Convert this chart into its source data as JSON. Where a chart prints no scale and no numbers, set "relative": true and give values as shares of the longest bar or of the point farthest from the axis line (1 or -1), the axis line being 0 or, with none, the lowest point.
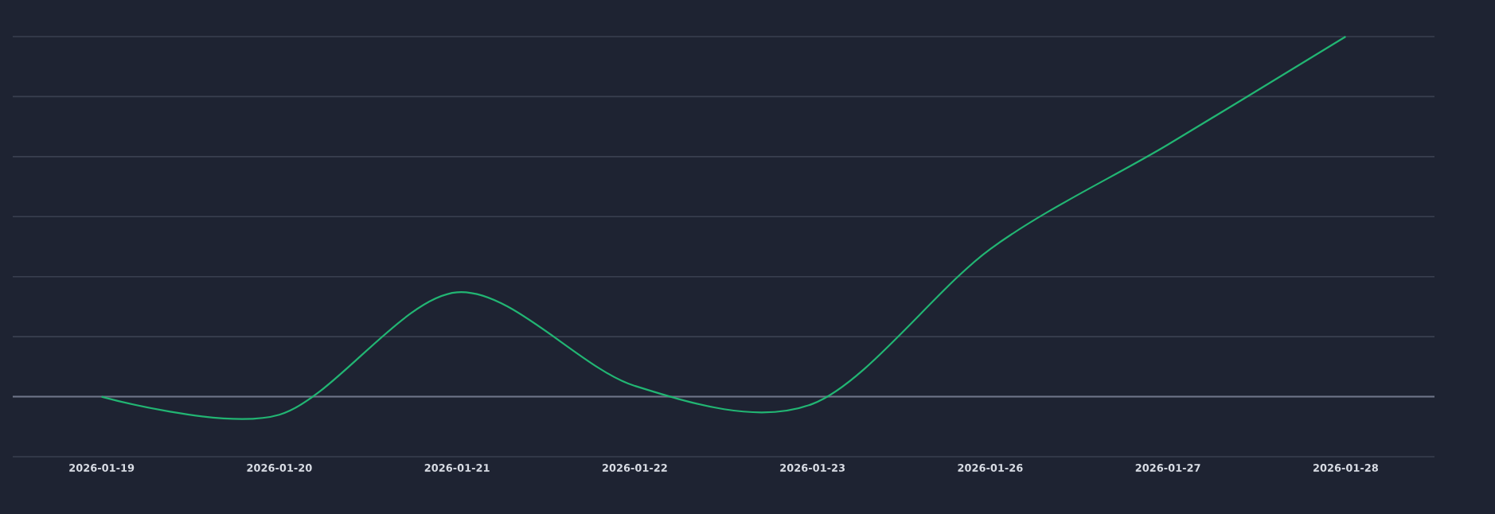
{
  "chart_data": {
    "type": "line",
    "relative": true,
    "grid": "y",
    "color": "#22b573",
    "categories": [
      "2026-01-19",
      "2026-01-20",
      "2026-01-21",
      "2026-01-22",
      "2026-01-23",
      "2026-01-26",
      "2026-01-27",
      "2026-01-28"
    ],
    "values": [
      0,
      -0.05,
      0.29,
      0.03,
      -0.02,
      0.41,
      0.7,
      1
    ]
  }
}
